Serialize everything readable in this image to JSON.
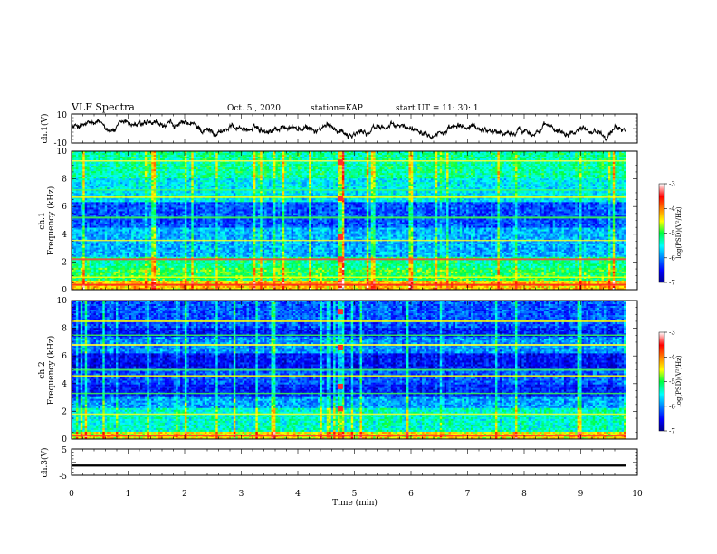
{
  "header": {
    "title": "VLF Spectra",
    "date": "Oct. 5  , 2020",
    "station": "station=KAP",
    "start": "start  UT  =   11: 30: 1"
  },
  "chart_data": [
    {
      "type": "line",
      "ylabel": "ch.1(V)",
      "ylim": [
        -10,
        10
      ],
      "yticks": [
        "10",
        "-10"
      ],
      "xlim": [
        0,
        10
      ],
      "note_series": "noisy waveform trace near 0 V"
    },
    {
      "type": "heatmap",
      "ylabel_line1": "ch.1",
      "ylabel_line2": "Frequency  (kHz)",
      "ylim": [
        0,
        10
      ],
      "yticks": [
        "0",
        "2",
        "4",
        "6",
        "8",
        "10"
      ],
      "xlim": [
        0,
        10
      ],
      "colorbar": {
        "label": "log(PSD)(V²/Hz)",
        "range": [
          -7,
          -3
        ],
        "ticks": [
          "-3",
          "-4",
          "-5",
          "-6",
          "-7"
        ]
      }
    },
    {
      "type": "heatmap",
      "ylabel_line1": "ch.2",
      "ylabel_line2": "Frequency  (kHz)",
      "ylim": [
        0,
        10
      ],
      "yticks": [
        "0",
        "2",
        "4",
        "6",
        "8",
        "10"
      ],
      "xlim": [
        0,
        10
      ],
      "colorbar": {
        "label": "log(PSD)(V²/Hz)",
        "range": [
          -7,
          -3
        ],
        "ticks": [
          "-3",
          "-4",
          "-5",
          "-6",
          "-7"
        ]
      }
    },
    {
      "type": "line",
      "ylabel": "ch.3(V)",
      "ylim": [
        -5,
        5
      ],
      "yticks": [
        "5",
        "-5"
      ],
      "xlim": [
        0,
        10
      ],
      "note_series": "dense thick trace near -1 V"
    }
  ],
  "xaxis": {
    "label": "Time  (min)",
    "ticks": [
      "0",
      "1",
      "2",
      "3",
      "4",
      "5",
      "6",
      "7",
      "8",
      "9",
      "10"
    ],
    "data_end": 9.8
  }
}
